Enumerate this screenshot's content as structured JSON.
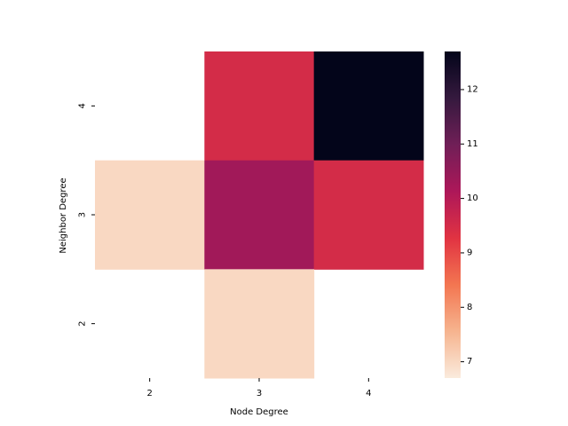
{
  "chart_data": {
    "type": "heatmap",
    "xlabel": "Node Degree",
    "ylabel": "Neighbor Degree",
    "x_categories": [
      "2",
      "3",
      "4"
    ],
    "y_categories": [
      "4",
      "3",
      "2"
    ],
    "values": [
      [
        null,
        9.5,
        12.7
      ],
      [
        7.0,
        10.3,
        9.5
      ],
      [
        null,
        7.0,
        null
      ]
    ],
    "colorbar": {
      "min": 6.7,
      "max": 12.7,
      "ticks": [
        7,
        8,
        9,
        10,
        11,
        12
      ],
      "tick_labels": [
        "7",
        "8",
        "9",
        "10",
        "11",
        "12"
      ],
      "colormap": "rocket_r",
      "color_stops": [
        "#faebdd",
        "#f6b48f",
        "#f37651",
        "#e13342",
        "#ad1759",
        "#701f57",
        "#35193e",
        "#03051a"
      ]
    }
  }
}
